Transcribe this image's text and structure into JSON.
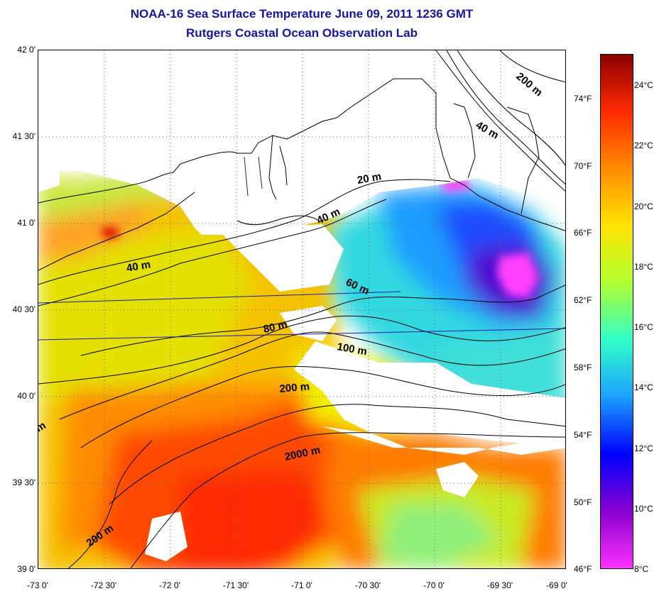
{
  "title": {
    "line1": "NOAA-16 Sea Surface Temperature June 09, 2011 1236 GMT",
    "line2": "Rutgers Coastal Ocean Observation Lab"
  },
  "latitude_labels": [
    "42 0'",
    "41 30'",
    "41 0'",
    "40 30'",
    "40 0'",
    "39 30'",
    "39 0'"
  ],
  "longitude_labels": [
    "-73 0'",
    "-72 30'",
    "-72 0'",
    "-71 30'",
    "-71 0'",
    "-70 30'",
    "-70 0'",
    "-69 30'",
    "-69 0'"
  ],
  "depth_contours": [
    "200 m",
    "40 m",
    "20 m",
    "40 m",
    "40 m",
    "60 m",
    "80 m",
    "100 m",
    "200 m",
    "2000 m",
    "200 m",
    "m"
  ],
  "colorbar": {
    "fahrenheit": [
      "74°F",
      "70°F",
      "66°F",
      "62°F",
      "58°F",
      "54°F",
      "50°F",
      "46°F"
    ],
    "celsius": [
      "24°C",
      "22°C",
      "20°C",
      "18°C",
      "16°C",
      "14°C",
      "12°C",
      "10°C",
      "8°C"
    ],
    "colors": [
      "#8b0000",
      "#ff2a00",
      "#ff8c00",
      "#ffe400",
      "#b0ff30",
      "#30ffc8",
      "#1aa0ff",
      "#0000ff",
      "#8800d0",
      "#ff30ff"
    ]
  }
}
